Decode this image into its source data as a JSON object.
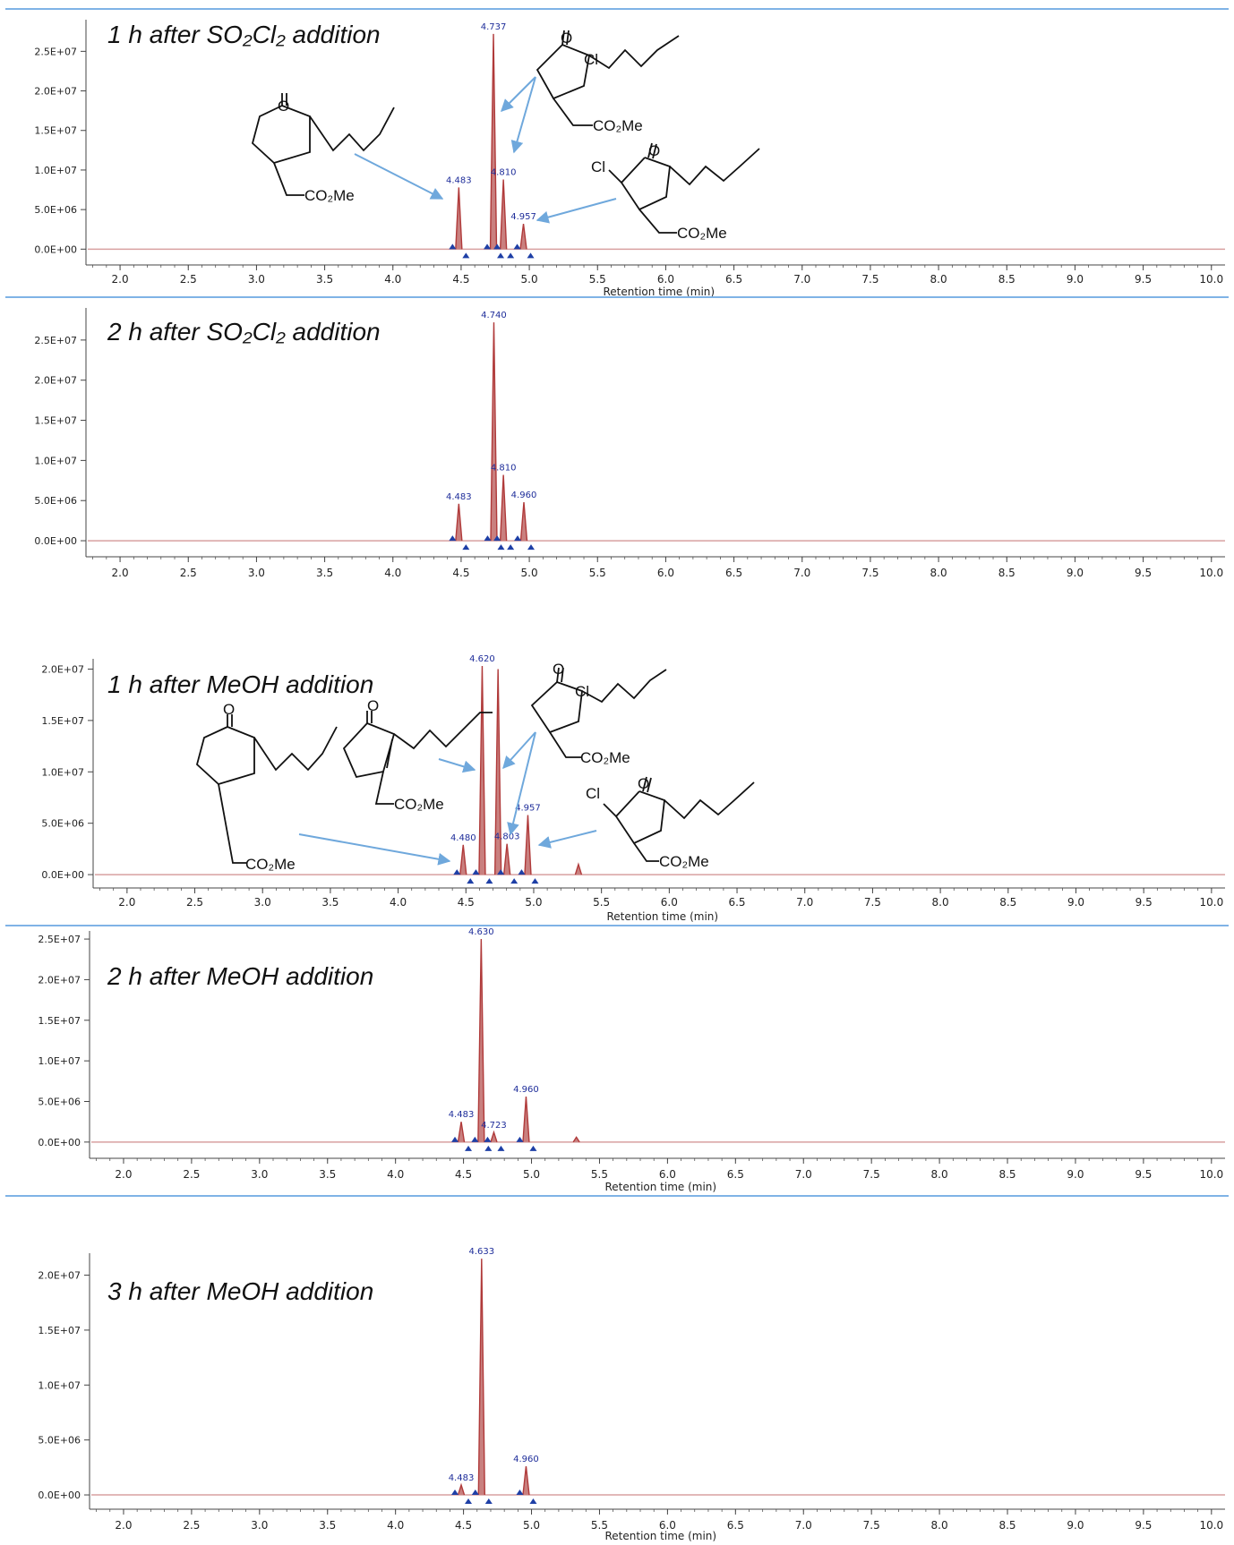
{
  "colors": {
    "trace": "#b03a3a",
    "baseline": "#d8a0a0",
    "peak_label": "#1e2d9a",
    "marker": "#1e3fa6",
    "frame": "#7fb3e6",
    "arrow": "#6fa8dc",
    "axis": "#444444"
  },
  "chart_data": [
    {
      "type": "line",
      "title": "1 h after SO₂Cl₂ addition",
      "xlabel": "Retention time (min)",
      "xlim": [
        1.75,
        10.1
      ],
      "ylim": [
        -2000000.0,
        29000000.0
      ],
      "x_ticks": [
        "2.0",
        "2.5",
        "3.0",
        "3.5",
        "4.0",
        "4.5",
        "5.0",
        "5.5",
        "6.0",
        "6.5",
        "7.0",
        "7.5",
        "8.0",
        "8.5",
        "9.0",
        "9.5",
        "10.0"
      ],
      "y_ticks": [
        "0.0E+00",
        "5.0E+06",
        "1.0E+07",
        "1.5E+07",
        "2.0E+07",
        "2.5E+07"
      ],
      "series": [
        {
          "peaks": [
            {
              "x": 4.483,
              "y": 7800000.0,
              "label": "4.483"
            },
            {
              "x": 4.737,
              "y": 27200000.0,
              "label": "4.737"
            },
            {
              "x": 4.81,
              "y": 8800000.0,
              "label": "4.810"
            },
            {
              "x": 4.957,
              "y": 3200000.0,
              "label": "4.957"
            }
          ]
        }
      ]
    },
    {
      "type": "line",
      "title": "2 h after SO₂Cl₂ addition",
      "xlabel": "",
      "xlim": [
        1.75,
        10.1
      ],
      "ylim": [
        -2000000.0,
        29000000.0
      ],
      "x_ticks": [
        "2.0",
        "2.5",
        "3.0",
        "3.5",
        "4.0",
        "4.5",
        "5.0",
        "5.5",
        "6.0",
        "6.5",
        "7.0",
        "7.5",
        "8.0",
        "8.5",
        "9.0",
        "9.5",
        "10.0"
      ],
      "y_ticks": [
        "0.0E+00",
        "5.0E+06",
        "1.0E+07",
        "1.5E+07",
        "2.0E+07",
        "2.5E+07"
      ],
      "series": [
        {
          "peaks": [
            {
              "x": 4.483,
              "y": 4600000.0,
              "label": "4.483"
            },
            {
              "x": 4.74,
              "y": 27200000.0,
              "label": "4.740"
            },
            {
              "x": 4.81,
              "y": 8200000.0,
              "label": "4.810"
            },
            {
              "x": 4.96,
              "y": 4800000.0,
              "label": "4.960"
            }
          ]
        }
      ]
    },
    {
      "type": "line",
      "title": "1 h after MeOH addition",
      "xlabel": "Retention time (min)",
      "xlim": [
        1.75,
        10.1
      ],
      "ylim": [
        -1300000.0,
        21000000.0
      ],
      "x_ticks": [
        "2.0",
        "2.5",
        "3.0",
        "3.5",
        "4.0",
        "4.5",
        "5.0",
        "5.5",
        "6.0",
        "6.5",
        "7.0",
        "7.5",
        "8.0",
        "8.5",
        "9.0",
        "9.5",
        "10.0"
      ],
      "y_ticks": [
        "0.0E+00",
        "5.0E+06",
        "1.0E+07",
        "1.5E+07",
        "2.0E+07"
      ],
      "series": [
        {
          "peaks": [
            {
              "x": 4.48,
              "y": 2900000.0,
              "label": "4.480"
            },
            {
              "x": 4.62,
              "y": 20300000.0,
              "label": "4.620"
            },
            {
              "x": 4.737,
              "y": 20000000.0,
              "label": ""
            },
            {
              "x": 4.803,
              "y": 3000000.0,
              "label": "4.803"
            },
            {
              "x": 4.957,
              "y": 5800000.0,
              "label": "4.957"
            },
            {
              "x": 5.33,
              "y": 1000000.0,
              "label": ""
            }
          ]
        }
      ]
    },
    {
      "type": "line",
      "title": "2 h after MeOH addition",
      "xlabel": "Retention time (min)",
      "xlim": [
        1.75,
        10.1
      ],
      "ylim": [
        -2000000.0,
        26000000.0
      ],
      "x_ticks": [
        "2.0",
        "2.5",
        "3.0",
        "3.5",
        "4.0",
        "4.5",
        "5.0",
        "5.5",
        "6.0",
        "6.5",
        "7.0",
        "7.5",
        "8.0",
        "8.5",
        "9.0",
        "9.5",
        "10.0"
      ],
      "y_ticks": [
        "0.0E+00",
        "5.0E+06",
        "1.0E+07",
        "1.5E+07",
        "2.0E+07",
        "2.5E+07"
      ],
      "series": [
        {
          "peaks": [
            {
              "x": 4.483,
              "y": 2500000.0,
              "label": "4.483"
            },
            {
              "x": 4.63,
              "y": 25000000.0,
              "label": "4.630"
            },
            {
              "x": 4.723,
              "y": 1200000.0,
              "label": "4.723"
            },
            {
              "x": 4.96,
              "y": 5600000.0,
              "label": "4.960"
            },
            {
              "x": 5.33,
              "y": 600000.0,
              "label": ""
            }
          ]
        }
      ]
    },
    {
      "type": "line",
      "title": "3 h after MeOH addition",
      "xlabel": "Retention time (min)",
      "xlim": [
        1.75,
        10.1
      ],
      "ylim": [
        -1300000.0,
        22000000.0
      ],
      "x_ticks": [
        "2.0",
        "2.5",
        "3.0",
        "3.5",
        "4.0",
        "4.5",
        "5.0",
        "5.5",
        "6.0",
        "6.5",
        "7.0",
        "7.5",
        "8.0",
        "8.5",
        "9.0",
        "9.5",
        "10.0"
      ],
      "y_ticks": [
        "0.0E+00",
        "5.0E+06",
        "1.0E+07",
        "1.5E+07",
        "2.0E+07"
      ],
      "series": [
        {
          "peaks": [
            {
              "x": 4.483,
              "y": 900000.0,
              "label": "4.483"
            },
            {
              "x": 4.633,
              "y": 21500000.0,
              "label": "4.633"
            },
            {
              "x": 4.96,
              "y": 2600000.0,
              "label": "4.960"
            }
          ]
        }
      ]
    }
  ],
  "structure_labels": {
    "oxygen": "O",
    "chlorine": "Cl",
    "ester": "CO₂Me"
  }
}
